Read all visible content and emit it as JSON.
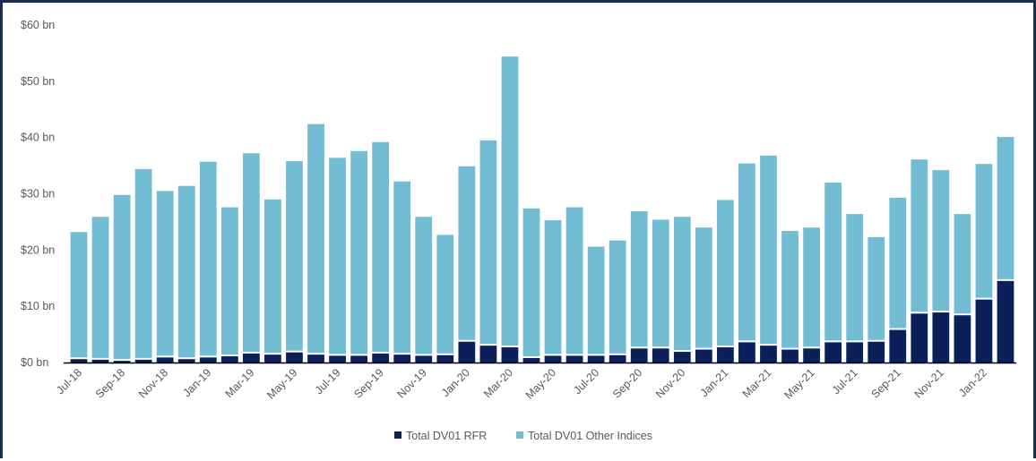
{
  "chart_data": {
    "type": "bar",
    "stacked": true,
    "title": "",
    "xlabel": "",
    "ylabel": "",
    "ylim": [
      0,
      60
    ],
    "y_ticks": [
      0,
      10,
      20,
      30,
      40,
      50,
      60
    ],
    "y_tick_labels": [
      "$0 bn",
      "$10 bn",
      "$20 bn",
      "$30 bn",
      "$40 bn",
      "$50 bn",
      "$60 bn"
    ],
    "grid": false,
    "legend_position": "bottom",
    "categories": [
      "Jul-18",
      "Aug-18",
      "Sep-18",
      "Oct-18",
      "Nov-18",
      "Dec-18",
      "Jan-19",
      "Feb-19",
      "Mar-19",
      "Apr-19",
      "May-19",
      "Jun-19",
      "Jul-19",
      "Aug-19",
      "Sep-19",
      "Oct-19",
      "Nov-19",
      "Dec-19",
      "Jan-20",
      "Feb-20",
      "Mar-20",
      "Apr-20",
      "May-20",
      "Jun-20",
      "Jul-20",
      "Aug-20",
      "Sep-20",
      "Oct-20",
      "Nov-20",
      "Dec-20",
      "Jan-21",
      "Feb-21",
      "Mar-21",
      "Apr-21",
      "May-21",
      "Jun-21",
      "Jul-21",
      "Aug-21",
      "Sep-21",
      "Oct-21",
      "Nov-21",
      "Dec-21",
      "Jan-22",
      "Feb-22"
    ],
    "x_tick_labels": [
      "Jul-18",
      "Sep-18",
      "Nov-18",
      "Jan-19",
      "Mar-19",
      "May-19",
      "Jul-19",
      "Sep-19",
      "Nov-19",
      "Jan-20",
      "Mar-20",
      "May-20",
      "Jul-20",
      "Sep-20",
      "Nov-20",
      "Jan-21",
      "Mar-21",
      "May-21",
      "Jul-21",
      "Sep-21",
      "Nov-21",
      "Jan-22"
    ],
    "series": [
      {
        "name": "Total DV01 RFR",
        "color": "#0c1f5b",
        "values": [
          0.6,
          0.5,
          0.3,
          0.5,
          0.9,
          0.6,
          0.9,
          1.1,
          1.6,
          1.4,
          1.8,
          1.4,
          1.2,
          1.2,
          1.6,
          1.4,
          1.2,
          1.3,
          3.7,
          3.0,
          2.7,
          0.8,
          1.2,
          1.2,
          1.2,
          1.3,
          2.5,
          2.5,
          1.9,
          2.3,
          2.7,
          3.6,
          3.0,
          2.3,
          2.5,
          3.6,
          3.6,
          3.7,
          5.8,
          8.7,
          8.9,
          8.4,
          11.2,
          14.5
        ]
      },
      {
        "name": "Total DV01 Other Indices",
        "color": "#72bcd4",
        "values": [
          22.6,
          25.4,
          29.5,
          33.9,
          29.6,
          30.8,
          34.8,
          26.5,
          35.6,
          27.6,
          34.0,
          41.0,
          35.2,
          36.4,
          37.6,
          30.8,
          24.7,
          21.4,
          31.2,
          36.5,
          51.7,
          26.6,
          24.1,
          26.4,
          19.4,
          20.4,
          24.4,
          22.9,
          24.0,
          21.7,
          26.2,
          31.8,
          33.8,
          21.1,
          21.5,
          28.4,
          22.8,
          18.6,
          23.5,
          27.4,
          25.3,
          18.0,
          24.1,
          25.6
        ]
      }
    ]
  }
}
